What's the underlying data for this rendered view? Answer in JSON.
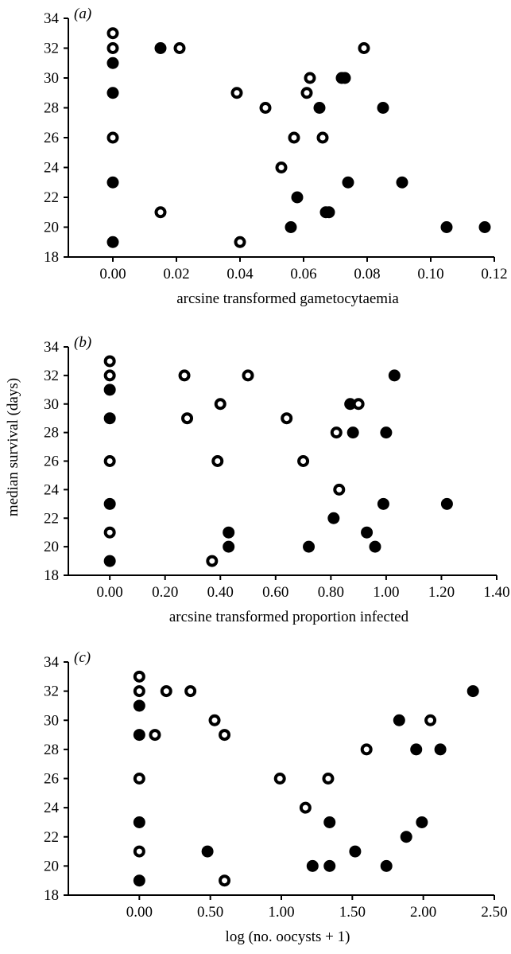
{
  "ylabel": "median survival (days)",
  "chart_data": [
    {
      "type": "scatter",
      "panel_label": "(a)",
      "xlabel": "arcsine transformed gametocytaemia",
      "xlim": [
        -0.014,
        0.12
      ],
      "ylim": [
        18,
        34
      ],
      "x_ticks": [
        0.0,
        0.02,
        0.04,
        0.06,
        0.08,
        0.1,
        0.12
      ],
      "x_tick_labels": [
        "0.00",
        "0.02",
        "0.04",
        "0.06",
        "0.08",
        "0.10",
        "0.12"
      ],
      "y_ticks": [
        18,
        20,
        22,
        24,
        26,
        28,
        30,
        32,
        34
      ],
      "y_tick_labels": [
        "18",
        "20",
        "22",
        "24",
        "26",
        "28",
        "30",
        "32",
        "34"
      ],
      "series": [
        {
          "marker": "filled",
          "points": [
            [
              0.0,
              31
            ],
            [
              0.0,
              29
            ],
            [
              0.0,
              23
            ],
            [
              0.0,
              19
            ],
            [
              0.015,
              32
            ],
            [
              0.056,
              20
            ],
            [
              0.058,
              22
            ],
            [
              0.065,
              28
            ],
            [
              0.067,
              21
            ],
            [
              0.068,
              21
            ],
            [
              0.072,
              30
            ],
            [
              0.073,
              30
            ],
            [
              0.074,
              23
            ],
            [
              0.085,
              28
            ],
            [
              0.091,
              23
            ],
            [
              0.105,
              20
            ],
            [
              0.117,
              20
            ]
          ]
        },
        {
          "marker": "open",
          "points": [
            [
              0.0,
              33
            ],
            [
              0.0,
              32
            ],
            [
              0.0,
              26
            ],
            [
              0.015,
              21
            ],
            [
              0.021,
              32
            ],
            [
              0.039,
              29
            ],
            [
              0.04,
              19
            ],
            [
              0.048,
              28
            ],
            [
              0.053,
              24
            ],
            [
              0.057,
              26
            ],
            [
              0.061,
              29
            ],
            [
              0.062,
              30
            ],
            [
              0.066,
              26
            ],
            [
              0.079,
              32
            ]
          ]
        }
      ]
    },
    {
      "type": "scatter",
      "panel_label": "(b)",
      "xlabel": "arcsine transformed proportion infected",
      "xlim": [
        -0.15,
        1.4
      ],
      "ylim": [
        18,
        34
      ],
      "x_ticks": [
        0.0,
        0.2,
        0.4,
        0.6,
        0.8,
        1.0,
        1.2,
        1.4
      ],
      "x_tick_labels": [
        "0.00",
        "0.20",
        "0.40",
        "0.60",
        "0.80",
        "1.00",
        "1.20",
        "1.40"
      ],
      "y_ticks": [
        18,
        20,
        22,
        24,
        26,
        28,
        30,
        32,
        34
      ],
      "y_tick_labels": [
        "18",
        "20",
        "22",
        "24",
        "26",
        "28",
        "30",
        "32",
        "34"
      ],
      "series": [
        {
          "marker": "filled",
          "points": [
            [
              0.0,
              31
            ],
            [
              0.0,
              29
            ],
            [
              0.0,
              23
            ],
            [
              0.0,
              19
            ],
            [
              0.43,
              21
            ],
            [
              0.43,
              20
            ],
            [
              0.72,
              20
            ],
            [
              0.81,
              22
            ],
            [
              0.87,
              30
            ],
            [
              0.88,
              28
            ],
            [
              0.93,
              21
            ],
            [
              0.96,
              20
            ],
            [
              0.99,
              23
            ],
            [
              1.0,
              28
            ],
            [
              1.03,
              32
            ],
            [
              1.22,
              23
            ]
          ]
        },
        {
          "marker": "open",
          "points": [
            [
              0.0,
              33
            ],
            [
              0.0,
              32
            ],
            [
              0.0,
              26
            ],
            [
              0.0,
              21
            ],
            [
              0.27,
              32
            ],
            [
              0.28,
              29
            ],
            [
              0.37,
              19
            ],
            [
              0.39,
              26
            ],
            [
              0.4,
              30
            ],
            [
              0.5,
              32
            ],
            [
              0.64,
              29
            ],
            [
              0.7,
              26
            ],
            [
              0.82,
              28
            ],
            [
              0.83,
              24
            ],
            [
              0.9,
              30
            ]
          ]
        }
      ]
    },
    {
      "type": "scatter",
      "panel_label": "(c)",
      "xlabel": "log (no. oocysts + 1)",
      "xlim": [
        -0.5,
        2.5
      ],
      "ylim": [
        18,
        34
      ],
      "x_ticks": [
        0.0,
        0.5,
        1.0,
        1.5,
        2.0,
        2.5
      ],
      "x_tick_labels": [
        "0.00",
        "0.50",
        "1.00",
        "1.50",
        "2.00",
        "2.50"
      ],
      "y_ticks": [
        18,
        20,
        22,
        24,
        26,
        28,
        30,
        32,
        34
      ],
      "y_tick_labels": [
        "18",
        "20",
        "22",
        "24",
        "26",
        "28",
        "30",
        "32",
        "34"
      ],
      "series": [
        {
          "marker": "filled",
          "points": [
            [
              0.0,
              31
            ],
            [
              0.0,
              29
            ],
            [
              0.0,
              23
            ],
            [
              0.0,
              19
            ],
            [
              0.48,
              21
            ],
            [
              1.22,
              20
            ],
            [
              1.34,
              23
            ],
            [
              1.34,
              20
            ],
            [
              1.52,
              21
            ],
            [
              1.74,
              20
            ],
            [
              1.83,
              30
            ],
            [
              1.88,
              22
            ],
            [
              1.95,
              28
            ],
            [
              1.99,
              23
            ],
            [
              2.12,
              28
            ],
            [
              2.35,
              32
            ]
          ]
        },
        {
          "marker": "open",
          "points": [
            [
              0.0,
              33
            ],
            [
              0.0,
              32
            ],
            [
              0.0,
              26
            ],
            [
              0.0,
              21
            ],
            [
              0.11,
              29
            ],
            [
              0.19,
              32
            ],
            [
              0.36,
              32
            ],
            [
              0.53,
              30
            ],
            [
              0.6,
              29
            ],
            [
              0.6,
              19
            ],
            [
              0.99,
              26
            ],
            [
              1.17,
              24
            ],
            [
              1.33,
              26
            ],
            [
              1.6,
              28
            ],
            [
              2.05,
              30
            ]
          ]
        }
      ]
    }
  ]
}
